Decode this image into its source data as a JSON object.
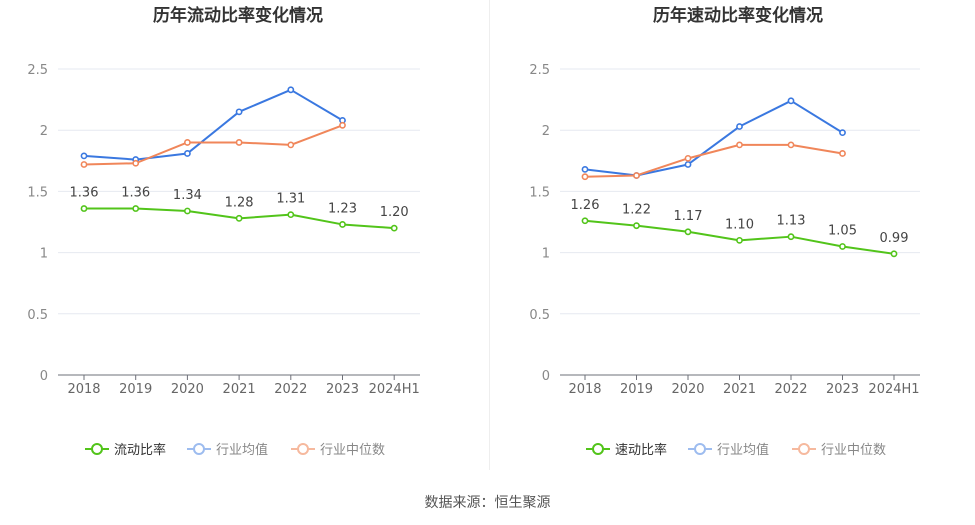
{
  "source_text": "数据来源：恒生聚源",
  "chart_data": [
    {
      "type": "line",
      "title": "历年流动比率变化情况",
      "categories": [
        "2018",
        "2019",
        "2020",
        "2021",
        "2022",
        "2023",
        "2024H1"
      ],
      "ylim": [
        0,
        2.5
      ],
      "yticks": [
        "0",
        "0.5",
        "1",
        "1.5",
        "2",
        "2.5"
      ],
      "grid": true,
      "legend_position": "bottom",
      "series": [
        {
          "name": "流动比率",
          "color": "#52c41a",
          "values": [
            1.36,
            1.36,
            1.34,
            1.28,
            1.31,
            1.23,
            1.2
          ],
          "labels": [
            "1.36",
            "1.36",
            "1.34",
            "1.28",
            "1.31",
            "1.23",
            "1.20"
          ]
        },
        {
          "name": "行业均值",
          "color": "#3a78e0",
          "values": [
            1.79,
            1.76,
            1.81,
            2.15,
            2.33,
            2.08,
            null
          ]
        },
        {
          "name": "行业中位数",
          "color": "#f0865a",
          "values": [
            1.72,
            1.73,
            1.9,
            1.9,
            1.88,
            2.04,
            null
          ]
        }
      ]
    },
    {
      "type": "line",
      "title": "历年速动比率变化情况",
      "categories": [
        "2018",
        "2019",
        "2020",
        "2021",
        "2022",
        "2023",
        "2024H1"
      ],
      "ylim": [
        0,
        2.5
      ],
      "yticks": [
        "0",
        "0.5",
        "1",
        "1.5",
        "2",
        "2.5"
      ],
      "grid": true,
      "legend_position": "bottom",
      "series": [
        {
          "name": "速动比率",
          "color": "#52c41a",
          "values": [
            1.26,
            1.22,
            1.17,
            1.1,
            1.13,
            1.05,
            0.99
          ],
          "labels": [
            "1.26",
            "1.22",
            "1.17",
            "1.10",
            "1.13",
            "1.05",
            "0.99"
          ]
        },
        {
          "name": "行业均值",
          "color": "#3a78e0",
          "values": [
            1.68,
            1.63,
            1.72,
            2.03,
            2.24,
            1.98,
            null
          ]
        },
        {
          "name": "行业中位数",
          "color": "#f0865a",
          "values": [
            1.62,
            1.63,
            1.77,
            1.88,
            1.88,
            1.81,
            null
          ]
        }
      ]
    }
  ]
}
